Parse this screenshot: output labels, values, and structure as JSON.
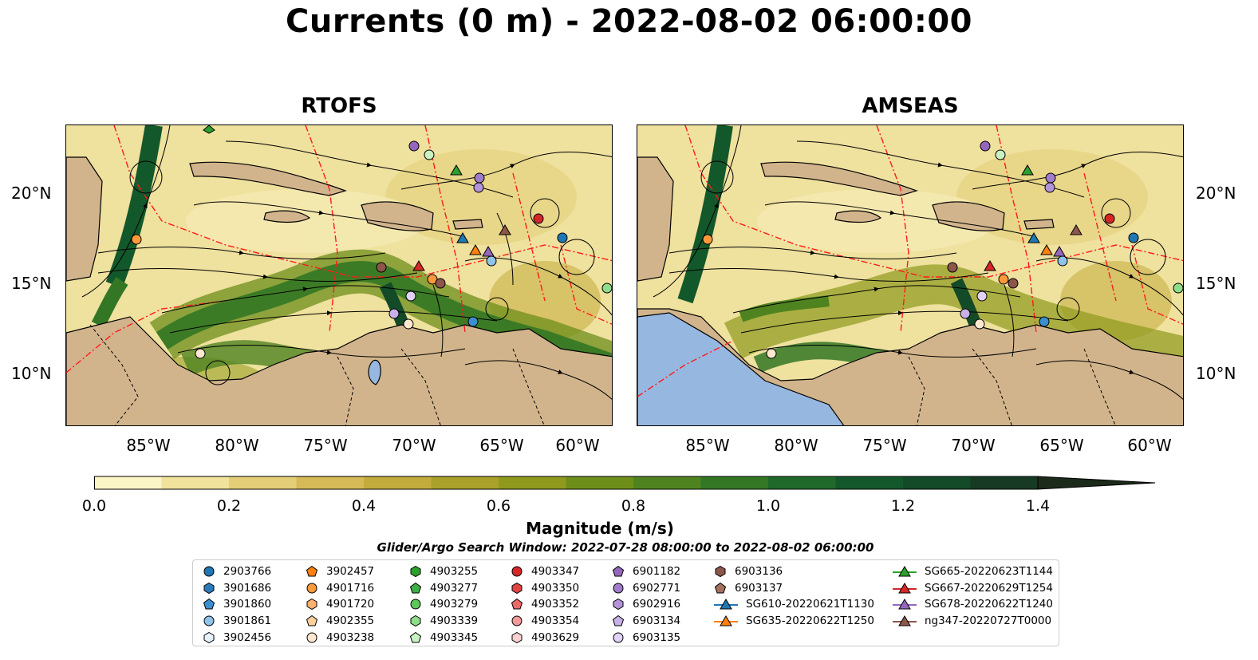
{
  "title": "Currents (0 m) - 2022-08-02 06:00:00",
  "panels": [
    {
      "title": "RTOFS"
    },
    {
      "title": "AMSEAS"
    }
  ],
  "lat_labels": [
    "20°N",
    "15°N",
    "10°N"
  ],
  "lon_labels": [
    "85°W",
    "80°W",
    "75°W",
    "70°W",
    "65°W",
    "60°W"
  ],
  "colorbar": {
    "title": "Magnitude (m/s)",
    "tick_labels": [
      "0.0",
      "0.2",
      "0.4",
      "0.6",
      "0.8",
      "1.0",
      "1.2",
      "1.4"
    ],
    "colors": [
      "#fbf6c6",
      "#f1e39b",
      "#e4cf78",
      "#d5ba57",
      "#c4ac3c",
      "#a9a12a",
      "#8f9a1d",
      "#6e8e1a",
      "#4f8320",
      "#337725",
      "#1f6a2a",
      "#13582b",
      "#134a28",
      "#173a24",
      "#19301f",
      "#1b2a1a"
    ]
  },
  "search_window": "Glider/Argo Search Window: 2022-07-28 08:00:00 to 2022-08-02 06:00:00",
  "legend": [
    {
      "label": "2903766",
      "marker": "circle",
      "color": "#1f77b4"
    },
    {
      "label": "3901686",
      "marker": "hexagon",
      "color": "#2b7bba"
    },
    {
      "label": "3901860",
      "marker": "pentagon",
      "color": "#3a8fd1"
    },
    {
      "label": "3901861",
      "marker": "circle",
      "color": "#8fc3ea"
    },
    {
      "label": "3902456",
      "marker": "hexagon",
      "color": "#e6f1fb"
    },
    {
      "label": "3902457",
      "marker": "pentagon",
      "color": "#ff7f0e"
    },
    {
      "label": "4901716",
      "marker": "circle",
      "color": "#ff9a3c"
    },
    {
      "label": "4901720",
      "marker": "hexagon",
      "color": "#ffb26b"
    },
    {
      "label": "4902355",
      "marker": "pentagon",
      "color": "#ffcf9e"
    },
    {
      "label": "4903238",
      "marker": "circle",
      "color": "#ffe7cf"
    },
    {
      "label": "4903255",
      "marker": "hexagon",
      "color": "#2ca02c"
    },
    {
      "label": "4903277",
      "marker": "pentagon",
      "color": "#3cb043"
    },
    {
      "label": "4903279",
      "marker": "circle",
      "color": "#5cc85a"
    },
    {
      "label": "4903339",
      "marker": "hexagon",
      "color": "#8fdc8a"
    },
    {
      "label": "4903345",
      "marker": "pentagon",
      "color": "#c9f2c2"
    },
    {
      "label": "4903347",
      "marker": "circle",
      "color": "#d62728"
    },
    {
      "label": "4903350",
      "marker": "hexagon",
      "color": "#e04343"
    },
    {
      "label": "4903352",
      "marker": "pentagon",
      "color": "#ea6a6a"
    },
    {
      "label": "4903354",
      "marker": "circle",
      "color": "#f39a9a"
    },
    {
      "label": "4903629",
      "marker": "hexagon",
      "color": "#fbd0d0"
    },
    {
      "label": "6901182",
      "marker": "pentagon",
      "color": "#9467bd"
    },
    {
      "label": "6902771",
      "marker": "circle",
      "color": "#a07ccb"
    },
    {
      "label": "6902916",
      "marker": "hexagon",
      "color": "#b394da"
    },
    {
      "label": "6903134",
      "marker": "pentagon",
      "color": "#c8b0e8"
    },
    {
      "label": "6903135",
      "marker": "circle",
      "color": "#e2d2f5"
    },
    {
      "label": "6903136",
      "marker": "hexagon",
      "color": "#8c564b"
    },
    {
      "label": "6903137",
      "marker": "pentagon",
      "color": "#a4705f"
    },
    {
      "label": "SG610-20220621T1130",
      "marker": "triangle-line",
      "color": "#1f77b4"
    },
    {
      "label": "SG635-20220622T1250",
      "marker": "triangle-line",
      "color": "#ff7f0e"
    },
    {
      "label": "SG665-20220623T1144",
      "marker": "triangle-line",
      "color": "#2ca02c"
    },
    {
      "label": "SG667-20220629T1254",
      "marker": "triangle-line",
      "color": "#d62728"
    },
    {
      "label": "SG678-20220622T1240",
      "marker": "triangle-line",
      "color": "#9467bd"
    },
    {
      "label": "ng347-20220727T0000",
      "marker": "triangle-line",
      "color": "#8c564b"
    }
  ]
}
